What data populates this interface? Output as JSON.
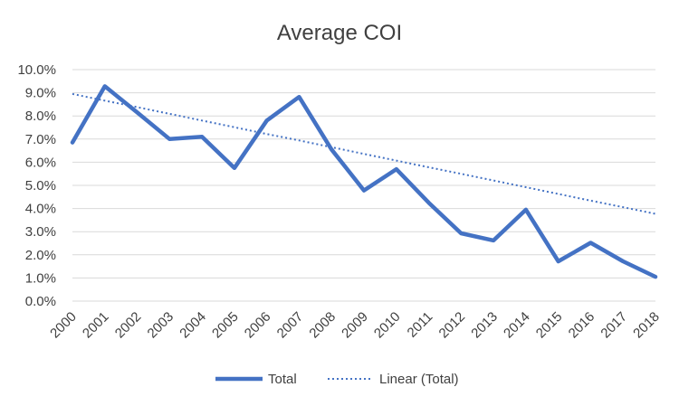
{
  "chart_data": {
    "type": "line",
    "title": "Average COI",
    "xlabel": "",
    "ylabel": "",
    "ylim": [
      0,
      0.1
    ],
    "y_ticks": [
      "0.0%",
      "1.0%",
      "2.0%",
      "3.0%",
      "4.0%",
      "5.0%",
      "6.0%",
      "7.0%",
      "8.0%",
      "9.0%",
      "10.0%"
    ],
    "categories": [
      "2000",
      "2001",
      "2002",
      "2003",
      "2004",
      "2005",
      "2006",
      "2007",
      "2008",
      "2009",
      "2010",
      "2011",
      "2012",
      "2013",
      "2014",
      "2015",
      "2016",
      "2017",
      "2018"
    ],
    "series": [
      {
        "name": "Total",
        "style": "solid",
        "color": "#4472c4",
        "values": [
          0.0685,
          0.0928,
          0.0815,
          0.07,
          0.071,
          0.0575,
          0.078,
          0.0882,
          0.0655,
          0.0478,
          0.057,
          0.0425,
          0.0293,
          0.0262,
          0.0395,
          0.0172,
          0.0252,
          0.0172,
          0.0105
        ]
      },
      {
        "name": "Linear (Total)",
        "style": "dotted",
        "color": "#4472c4",
        "values": [
          0.0895,
          0.0866,
          0.0838,
          0.0809,
          0.078,
          0.0751,
          0.0722,
          0.0694,
          0.0665,
          0.0636,
          0.0607,
          0.0578,
          0.055,
          0.0521,
          0.0492,
          0.0463,
          0.0434,
          0.0406,
          0.0377
        ]
      }
    ],
    "grid": true,
    "legend_position": "bottom"
  }
}
